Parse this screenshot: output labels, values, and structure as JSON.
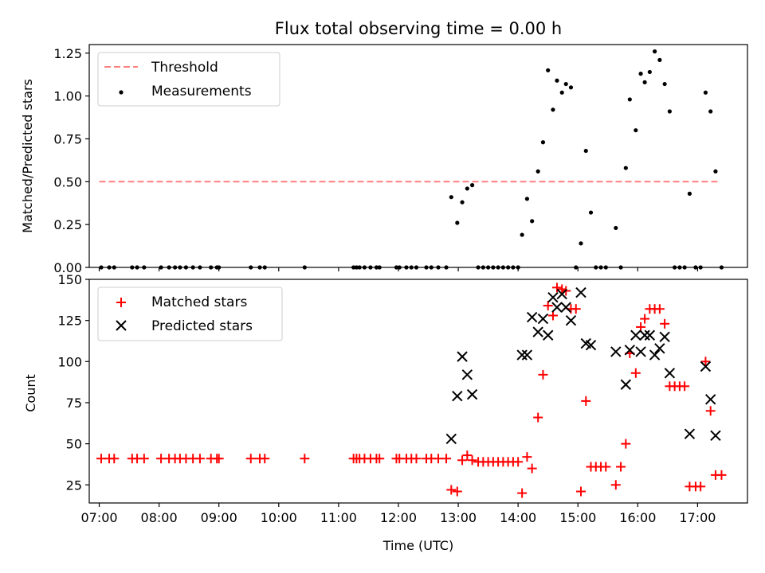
{
  "title": "Flux total observing time = 0.00 h",
  "colors": {
    "threshold": "#ff7f7f",
    "measurements": "#000000",
    "matched": "#ff0000",
    "predicted": "#000000"
  },
  "chart_data": [
    {
      "type": "scatter",
      "panel": "top",
      "ylabel": "Matched/Predicted stars",
      "xlim": [
        "06:50",
        "17:50"
      ],
      "ylim": [
        0,
        1.3
      ],
      "yticks": [
        0.0,
        0.25,
        0.5,
        0.75,
        1.0,
        1.25
      ],
      "ytick_labels": [
        "0.00",
        "0.25",
        "0.50",
        "0.75",
        "1.00",
        "1.25"
      ],
      "legend": {
        "placement": "upper-left",
        "entries": [
          "Threshold",
          "Measurements"
        ]
      },
      "threshold": {
        "name": "Threshold",
        "value": 0.5,
        "x": [
          "07:00",
          "17:20"
        ]
      },
      "series": [
        {
          "name": "Measurements",
          "marker": "dot",
          "points": [
            [
              "07:02",
              0
            ],
            [
              "07:10",
              0
            ],
            [
              "07:15",
              0
            ],
            [
              "07:33",
              0
            ],
            [
              "07:38",
              0
            ],
            [
              "07:45",
              0
            ],
            [
              "08:02",
              0
            ],
            [
              "08:10",
              0
            ],
            [
              "08:16",
              0
            ],
            [
              "08:21",
              0
            ],
            [
              "08:27",
              0
            ],
            [
              "08:34",
              0
            ],
            [
              "08:41",
              0
            ],
            [
              "08:52",
              0
            ],
            [
              "08:58",
              0
            ],
            [
              "09:00",
              0
            ],
            [
              "09:32",
              0
            ],
            [
              "09:41",
              0
            ],
            [
              "09:46",
              0
            ],
            [
              "10:26",
              0
            ],
            [
              "11:15",
              0
            ],
            [
              "11:18",
              0
            ],
            [
              "11:21",
              0
            ],
            [
              "11:26",
              0
            ],
            [
              "11:32",
              0
            ],
            [
              "11:38",
              0
            ],
            [
              "11:41",
              0
            ],
            [
              "11:58",
              0
            ],
            [
              "12:01",
              0
            ],
            [
              "12:08",
              0
            ],
            [
              "12:13",
              0
            ],
            [
              "12:18",
              0
            ],
            [
              "12:28",
              0
            ],
            [
              "12:33",
              0
            ],
            [
              "12:40",
              0
            ],
            [
              "12:48",
              0
            ],
            [
              "12:53",
              0.41
            ],
            [
              "12:59",
              0.26
            ],
            [
              "13:04",
              0.38
            ],
            [
              "13:09",
              0.46
            ],
            [
              "13:14",
              0.48
            ],
            [
              "13:20",
              0
            ],
            [
              "13:25",
              0
            ],
            [
              "13:30",
              0
            ],
            [
              "13:35",
              0
            ],
            [
              "13:40",
              0
            ],
            [
              "13:45",
              0
            ],
            [
              "13:50",
              0
            ],
            [
              "13:55",
              0
            ],
            [
              "14:00",
              0
            ],
            [
              "14:04",
              0.19
            ],
            [
              "14:09",
              0.4
            ],
            [
              "14:14",
              0.27
            ],
            [
              "14:20",
              0.56
            ],
            [
              "14:25",
              0.73
            ],
            [
              "14:30",
              1.15
            ],
            [
              "14:35",
              0.92
            ],
            [
              "14:39",
              1.09
            ],
            [
              "14:44",
              1.02
            ],
            [
              "14:48",
              1.07
            ],
            [
              "14:53",
              1.05
            ],
            [
              "14:58",
              0
            ],
            [
              "15:03",
              0.14
            ],
            [
              "15:08",
              0.68
            ],
            [
              "15:13",
              0.32
            ],
            [
              "15:18",
              0
            ],
            [
              "15:23",
              0
            ],
            [
              "15:28",
              0
            ],
            [
              "15:38",
              0.23
            ],
            [
              "15:43",
              0
            ],
            [
              "15:48",
              0.58
            ],
            [
              "15:52",
              0.98
            ],
            [
              "15:58",
              0.8
            ],
            [
              "16:03",
              1.13
            ],
            [
              "16:07",
              1.08
            ],
            [
              "16:12",
              1.14
            ],
            [
              "16:17",
              1.26
            ],
            [
              "16:22",
              1.21
            ],
            [
              "16:27",
              1.07
            ],
            [
              "16:32",
              0.91
            ],
            [
              "16:37",
              0
            ],
            [
              "16:42",
              0
            ],
            [
              "16:47",
              0
            ],
            [
              "16:52",
              0.43
            ],
            [
              "16:58",
              0
            ],
            [
              "17:03",
              0
            ],
            [
              "17:08",
              1.02
            ],
            [
              "17:13",
              0.91
            ],
            [
              "17:18",
              0.56
            ],
            [
              "17:24",
              0
            ]
          ]
        }
      ]
    },
    {
      "type": "scatter",
      "panel": "bottom",
      "xlabel": "Time (UTC)",
      "ylabel": "Count",
      "xlim": [
        "06:50",
        "17:50"
      ],
      "ylim": [
        14,
        150
      ],
      "xticks": [
        "07:00",
        "08:00",
        "09:00",
        "10:00",
        "11:00",
        "12:00",
        "13:00",
        "14:00",
        "15:00",
        "16:00",
        "17:00"
      ],
      "yticks": [
        25,
        50,
        75,
        100,
        125,
        150
      ],
      "ytick_labels": [
        "25",
        "50",
        "75",
        "100",
        "125",
        "150"
      ],
      "legend": {
        "placement": "upper-left",
        "entries": [
          "Matched stars",
          "Predicted stars"
        ]
      },
      "series": [
        {
          "name": "Matched stars",
          "marker": "plus",
          "points": [
            [
              "07:02",
              41
            ],
            [
              "07:10",
              41
            ],
            [
              "07:15",
              41
            ],
            [
              "07:33",
              41
            ],
            [
              "07:38",
              41
            ],
            [
              "07:45",
              41
            ],
            [
              "08:02",
              41
            ],
            [
              "08:10",
              41
            ],
            [
              "08:16",
              41
            ],
            [
              "08:21",
              41
            ],
            [
              "08:27",
              41
            ],
            [
              "08:34",
              41
            ],
            [
              "08:41",
              41
            ],
            [
              "08:52",
              41
            ],
            [
              "08:58",
              41
            ],
            [
              "09:00",
              41
            ],
            [
              "09:32",
              41
            ],
            [
              "09:41",
              41
            ],
            [
              "09:46",
              41
            ],
            [
              "10:26",
              41
            ],
            [
              "11:15",
              41
            ],
            [
              "11:18",
              41
            ],
            [
              "11:21",
              41
            ],
            [
              "11:26",
              41
            ],
            [
              "11:32",
              41
            ],
            [
              "11:38",
              41
            ],
            [
              "11:41",
              41
            ],
            [
              "11:58",
              41
            ],
            [
              "12:01",
              41
            ],
            [
              "12:08",
              41
            ],
            [
              "12:13",
              41
            ],
            [
              "12:18",
              41
            ],
            [
              "12:28",
              41
            ],
            [
              "12:33",
              41
            ],
            [
              "12:40",
              41
            ],
            [
              "12:48",
              41
            ],
            [
              "12:53",
              22
            ],
            [
              "12:59",
              21
            ],
            [
              "13:04",
              40
            ],
            [
              "13:09",
              43
            ],
            [
              "13:14",
              40
            ],
            [
              "13:20",
              39
            ],
            [
              "13:25",
              39
            ],
            [
              "13:30",
              39
            ],
            [
              "13:35",
              39
            ],
            [
              "13:40",
              39
            ],
            [
              "13:45",
              39
            ],
            [
              "13:50",
              39
            ],
            [
              "13:55",
              39
            ],
            [
              "14:00",
              39
            ],
            [
              "14:04",
              20
            ],
            [
              "14:09",
              42
            ],
            [
              "14:14",
              35
            ],
            [
              "14:20",
              66
            ],
            [
              "14:25",
              92
            ],
            [
              "14:30",
              134
            ],
            [
              "14:35",
              128
            ],
            [
              "14:39",
              145
            ],
            [
              "14:44",
              144
            ],
            [
              "14:48",
              143
            ],
            [
              "14:53",
              132
            ],
            [
              "14:58",
              132
            ],
            [
              "15:03",
              21
            ],
            [
              "15:08",
              76
            ],
            [
              "15:13",
              36
            ],
            [
              "15:18",
              36
            ],
            [
              "15:23",
              36
            ],
            [
              "15:28",
              36
            ],
            [
              "15:38",
              25
            ],
            [
              "15:43",
              36
            ],
            [
              "15:48",
              50
            ],
            [
              "15:52",
              105
            ],
            [
              "15:58",
              93
            ],
            [
              "16:03",
              121
            ],
            [
              "16:07",
              126
            ],
            [
              "16:12",
              132
            ],
            [
              "16:17",
              132
            ],
            [
              "16:22",
              132
            ],
            [
              "16:27",
              123
            ],
            [
              "16:32",
              85
            ],
            [
              "16:37",
              85
            ],
            [
              "16:42",
              85
            ],
            [
              "16:47",
              85
            ],
            [
              "16:52",
              24
            ],
            [
              "16:58",
              24
            ],
            [
              "17:03",
              24
            ],
            [
              "17:08",
              100
            ],
            [
              "17:13",
              70
            ],
            [
              "17:18",
              31
            ],
            [
              "17:24",
              31
            ]
          ]
        },
        {
          "name": "Predicted stars",
          "marker": "x",
          "points": [
            [
              "12:53",
              53
            ],
            [
              "12:59",
              79
            ],
            [
              "13:04",
              103
            ],
            [
              "13:09",
              92
            ],
            [
              "13:14",
              80
            ],
            [
              "14:04",
              104
            ],
            [
              "14:09",
              104
            ],
            [
              "14:14",
              127
            ],
            [
              "14:20",
              118
            ],
            [
              "14:25",
              126
            ],
            [
              "14:30",
              116
            ],
            [
              "14:35",
              139
            ],
            [
              "14:39",
              133
            ],
            [
              "14:44",
              141
            ],
            [
              "14:48",
              133
            ],
            [
              "14:53",
              125
            ],
            [
              "15:03",
              142
            ],
            [
              "15:08",
              111
            ],
            [
              "15:13",
              110
            ],
            [
              "15:38",
              106
            ],
            [
              "15:48",
              86
            ],
            [
              "15:52",
              107
            ],
            [
              "15:58",
              116
            ],
            [
              "16:03",
              106
            ],
            [
              "16:07",
              116
            ],
            [
              "16:12",
              116
            ],
            [
              "16:17",
              104
            ],
            [
              "16:22",
              108
            ],
            [
              "16:27",
              115
            ],
            [
              "16:32",
              93
            ],
            [
              "16:52",
              56
            ],
            [
              "17:08",
              97
            ],
            [
              "17:13",
              77
            ],
            [
              "17:18",
              55
            ]
          ]
        }
      ]
    }
  ]
}
